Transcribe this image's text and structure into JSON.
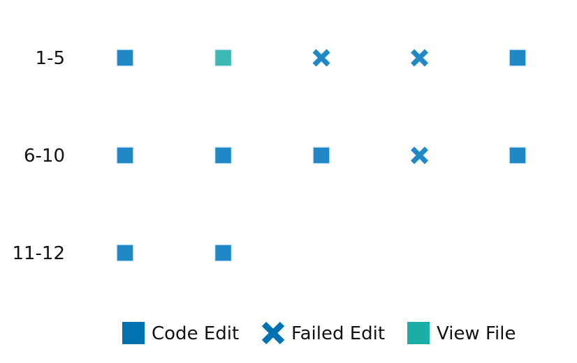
{
  "chart_data": {
    "type": "scatter",
    "title": "",
    "xlabel": "",
    "ylabel": "",
    "grid": false,
    "legend_position": "bottom",
    "columns_per_row": 5,
    "rows": [
      {
        "label": "1-5",
        "steps": [
          "Code Edit",
          "View File",
          "Failed Edit",
          "Failed Edit",
          "Code Edit"
        ]
      },
      {
        "label": "6-10",
        "steps": [
          "Code Edit",
          "Code Edit",
          "Code Edit",
          "Failed Edit",
          "Code Edit"
        ]
      },
      {
        "label": "11-12",
        "steps": [
          "Code Edit",
          "Code Edit"
        ]
      }
    ],
    "categories": [
      {
        "name": "Code Edit",
        "marker": "square",
        "color": "#1f88c5",
        "legend_color": "#0072b2"
      },
      {
        "name": "Failed Edit",
        "marker": "x",
        "color": "#1f88c5",
        "legend_color": "#0072b2"
      },
      {
        "name": "View File",
        "marker": "square",
        "color": "#3bb8b1",
        "legend_color": "#1baea6"
      }
    ],
    "legend": [
      {
        "label": "Code Edit",
        "marker": "square",
        "color": "#0072b2"
      },
      {
        "label": "Failed Edit",
        "marker": "x",
        "color": "#0072b2"
      },
      {
        "label": "View File",
        "marker": "square",
        "color": "#1baea6"
      }
    ]
  }
}
